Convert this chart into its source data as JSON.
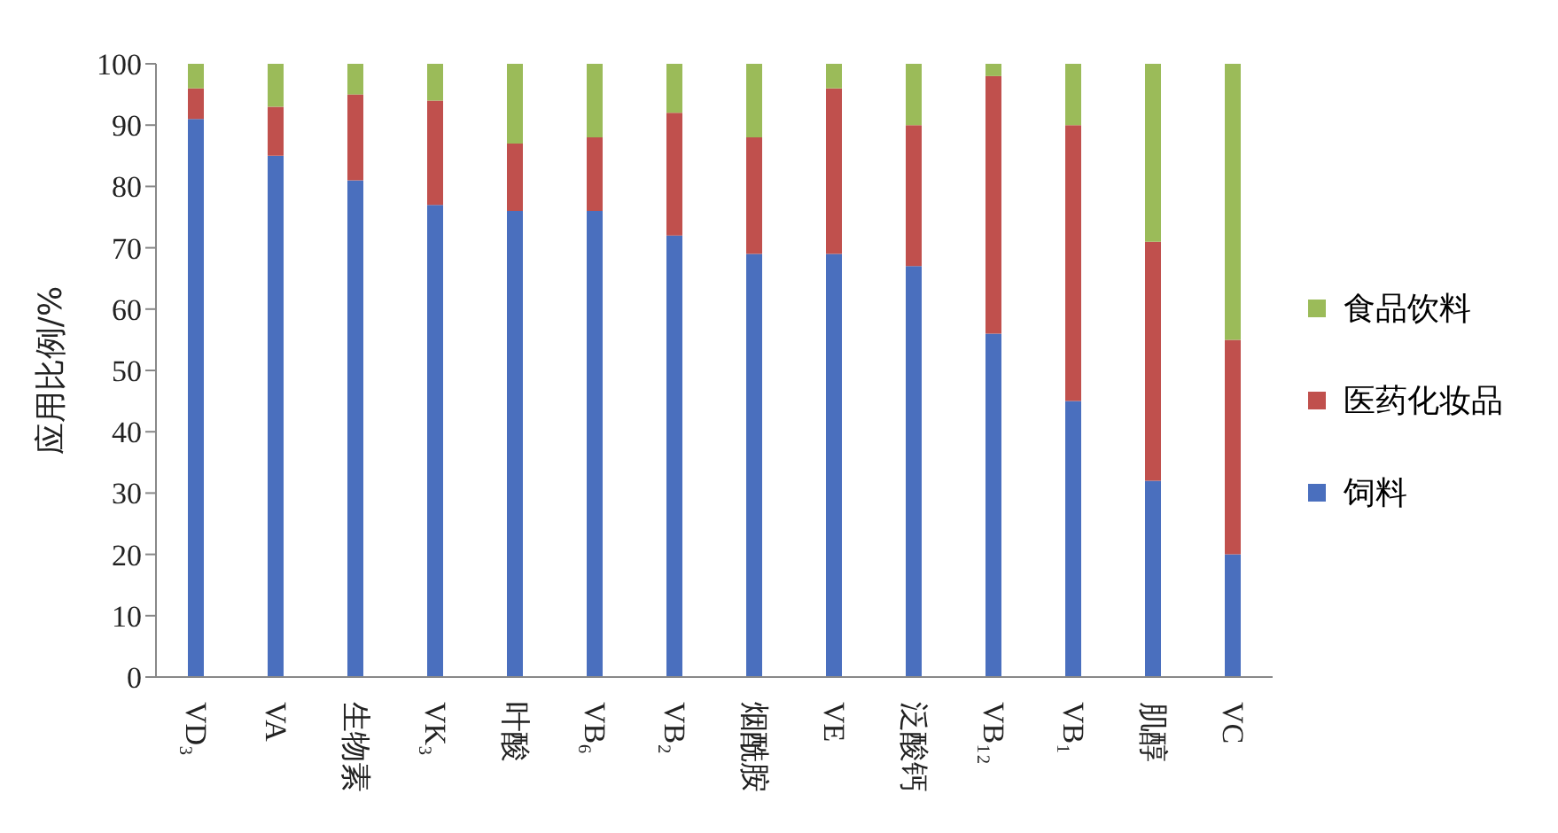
{
  "chart_data": {
    "type": "bar",
    "stacked": true,
    "ylabel": "应用比例/%",
    "categories": [
      "VD₃",
      "VA",
      "生物素",
      "VK₃",
      "叶酸",
      "VB₆",
      "VB₂",
      "烟酰胺",
      "VE",
      "泛酸钙",
      "VB₁₂",
      "VB₁",
      "肌醇",
      "VC"
    ],
    "series": [
      {
        "name": "饲料",
        "color": "#4a6fbe",
        "values": [
          91,
          85,
          81,
          77,
          76,
          76,
          72,
          69,
          69,
          67,
          56,
          45,
          32,
          20
        ]
      },
      {
        "name": "医药化妆品",
        "color": "#c0504d",
        "values": [
          5,
          8,
          14,
          17,
          11,
          12,
          20,
          19,
          27,
          23,
          42,
          45,
          39,
          35
        ]
      },
      {
        "name": "食品饮料",
        "color": "#9bbb59",
        "values": [
          4,
          7,
          5,
          6,
          13,
          12,
          8,
          12,
          4,
          10,
          2,
          10,
          29,
          45
        ]
      }
    ],
    "ylim": [
      0,
      100
    ],
    "yticks": [
      0,
      10,
      20,
      30,
      40,
      50,
      60,
      70,
      80,
      90,
      100
    ],
    "grid": false,
    "legend": "right"
  }
}
